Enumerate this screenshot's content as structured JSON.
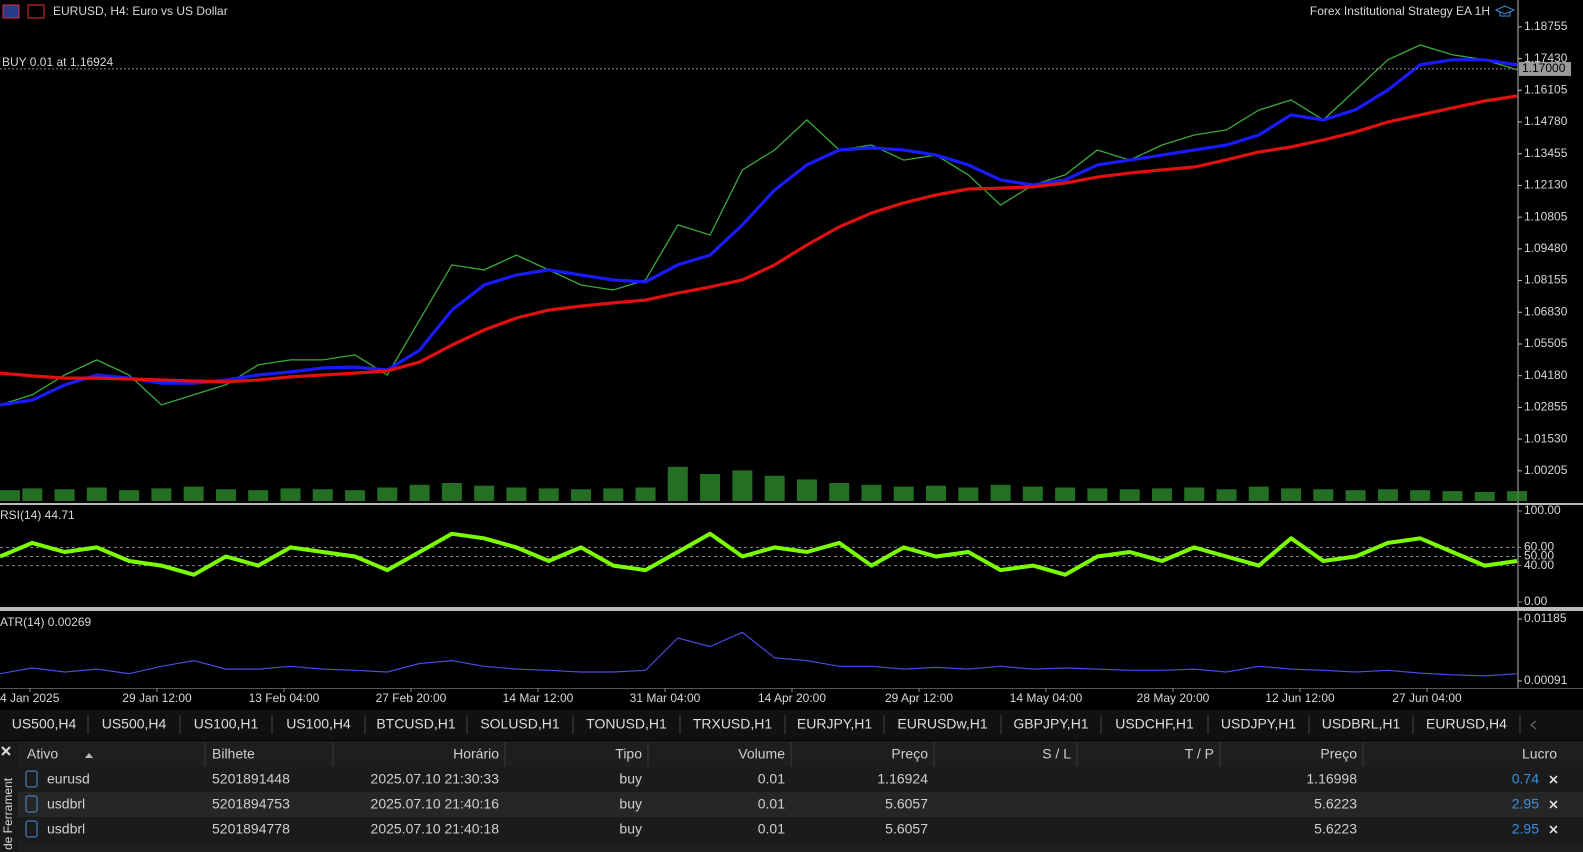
{
  "header": {
    "symbol": "EURUSD, H4:  Euro vs US Dollar",
    "expert": "Forex Institutional Strategy EA 1H",
    "order_line": "BUY 0.01 at 1.16924",
    "price_tag": {
      "value": 1.17,
      "label": "1.17000"
    }
  },
  "price_chart": {
    "type": "line",
    "ylim": [
      0.9886,
      1.1988
    ],
    "yticks": [
      1.18755,
      {
        "value": 1.1743,
        "label": "1.17430"
      },
      1.16105,
      {
        "value": 1.1478,
        "label": "1.14780"
      },
      1.13455,
      {
        "value": 1.1213,
        "label": "1.12130"
      },
      1.10805,
      {
        "value": 1.0948,
        "label": "1.09480"
      },
      1.08155,
      {
        "value": 1.0683,
        "label": "1.06830"
      },
      1.05505,
      {
        "value": 1.0418,
        "label": "1.04180"
      },
      1.02855,
      {
        "value": 1.0153,
        "label": "1.01530"
      },
      1.00205
    ],
    "x_labels": [
      "4 Jan 2025",
      "29 Jan 12:00",
      "13 Feb 04:00",
      "27 Feb 20:00",
      "14 Mar 12:00",
      "31 Mar 04:00",
      "14 Apr 20:00",
      "29 Apr 12:00",
      "14 May 04:00",
      "28 May 20:00",
      "12 Jun 12:00",
      "27 Jun 04:00"
    ],
    "series": [
      {
        "color": "#3aa93a",
        "values": [
          1.0296,
          1.0338,
          1.0421,
          1.0484,
          1.0421,
          1.0296,
          1.0338,
          1.038,
          1.0463,
          1.0484,
          1.0484,
          1.0505,
          1.0421,
          1.0651,
          1.0881,
          1.086,
          1.0922,
          1.086,
          1.0797,
          1.0776,
          1.0818,
          1.1048,
          1.1006,
          1.1278,
          1.1361,
          1.1487,
          1.1361,
          1.1382,
          1.1319,
          1.134,
          1.1257,
          1.1131,
          1.1215,
          1.1257,
          1.1361,
          1.1319,
          1.1382,
          1.1424,
          1.1445,
          1.1528,
          1.157,
          1.1487,
          1.1612,
          1.1738,
          1.18,
          1.1759,
          1.1738,
          1.1696
        ]
      },
      {
        "color": "#1a1aff",
        "values": [
          1.0296,
          1.0316,
          1.0379,
          1.0421,
          1.0408,
          1.0387,
          1.0387,
          1.04,
          1.0421,
          1.0434,
          1.045,
          1.0454,
          1.0442,
          1.0525,
          1.0692,
          1.0797,
          1.0839,
          1.086,
          1.0839,
          1.0818,
          1.081,
          1.0881,
          1.0922,
          1.1048,
          1.1194,
          1.1299,
          1.1361,
          1.137,
          1.1361,
          1.134,
          1.1299,
          1.1236,
          1.1215,
          1.1236,
          1.1299,
          1.1319,
          1.134,
          1.1361,
          1.1382,
          1.1424,
          1.1508,
          1.1487,
          1.1529,
          1.1612,
          1.1717,
          1.1738,
          1.1738,
          1.1717
        ]
      },
      {
        "color": "#e01010",
        "values": [
          1.0429,
          1.0417,
          1.0408,
          1.0408,
          1.0404,
          1.04,
          1.0396,
          1.0392,
          1.04,
          1.0413,
          1.0421,
          1.0429,
          1.0438,
          1.0475,
          1.0546,
          1.0609,
          1.0659,
          1.0692,
          1.0709,
          1.0722,
          1.0734,
          1.0763,
          1.0789,
          1.0818,
          1.0881,
          1.0964,
          1.104,
          1.1098,
          1.114,
          1.1173,
          1.1198,
          1.1202,
          1.1207,
          1.1223,
          1.1248,
          1.1265,
          1.1278,
          1.129,
          1.132,
          1.1353,
          1.1374,
          1.1403,
          1.1437,
          1.1478,
          1.1508,
          1.1537,
          1.1566,
          1.1587
        ]
      }
    ],
    "volume": {
      "color": "#2e8b2e",
      "ylim": [
        0,
        50
      ],
      "values": [
        12,
        14,
        13,
        15,
        12,
        14,
        16,
        13,
        12,
        14,
        13,
        12,
        15,
        18,
        20,
        17,
        15,
        14,
        13,
        14,
        15,
        38,
        30,
        34,
        28,
        24,
        20,
        18,
        16,
        17,
        15,
        18,
        16,
        15,
        14,
        13,
        14,
        15,
        13,
        16,
        14,
        13,
        12,
        13,
        12,
        11,
        10,
        11
      ]
    }
  },
  "rsi_chart": {
    "type": "line",
    "label": "RSI(14) 44.71",
    "color": "#7cfc00",
    "ylim": [
      -5.5,
      106.6
    ],
    "yticks": [
      {
        "value": 100,
        "label": "100.00"
      },
      {
        "value": 60,
        "label": "60.00"
      },
      {
        "value": 50,
        "label": "50.00"
      },
      {
        "value": 40,
        "label": "40.00"
      },
      {
        "value": 0,
        "label": "0.00"
      }
    ],
    "values": [
      50,
      65,
      55,
      60,
      45,
      40,
      30,
      50,
      40,
      60,
      55,
      50,
      35,
      55,
      75,
      70,
      60,
      45,
      60,
      40,
      35,
      55,
      75,
      50,
      60,
      55,
      65,
      40,
      60,
      50,
      55,
      35,
      40,
      30,
      50,
      55,
      45,
      60,
      50,
      40,
      70,
      45,
      50,
      65,
      70,
      55,
      40,
      45
    ]
  },
  "atr_chart": {
    "type": "line",
    "label": "ATR(14) 0.00269",
    "color": "#4a4ae0",
    "ylim": [
      -0.00033,
      0.01309
    ],
    "yticks": [
      0.01185,
      0.00091
    ],
    "values": [
      0.0022,
      0.0032,
      0.0025,
      0.003,
      0.0022,
      0.0035,
      0.0045,
      0.003,
      0.003,
      0.0035,
      0.003,
      0.0028,
      0.0025,
      0.004,
      0.0045,
      0.0035,
      0.003,
      0.0028,
      0.0025,
      0.0025,
      0.0028,
      0.0085,
      0.007,
      0.0095,
      0.005,
      0.0045,
      0.0035,
      0.0035,
      0.003,
      0.0033,
      0.003,
      0.0035,
      0.003,
      0.0032,
      0.003,
      0.0028,
      0.0028,
      0.003,
      0.0025,
      0.0035,
      0.003,
      0.0028,
      0.0025,
      0.0028,
      0.0023,
      0.002,
      0.0018,
      0.0022
    ]
  },
  "tabs": [
    "US500,H4",
    "US500,H4",
    "US100,H1",
    "US100,H4",
    "BTCUSD,H1",
    "SOLUSD,H1",
    "TONUSD,H1",
    "TRXUSD,H1",
    "EURJPY,H1",
    "EURUSDw,H1",
    "GBPJPY,H1",
    "USDCHF,H1",
    "USDJPY,H1",
    "USDBRL,H1",
    "EURUSD,H4"
  ],
  "toolbox": {
    "title": "de Ferrament"
  },
  "table": {
    "headers": [
      "Ativo",
      "Bilhete",
      "Horário",
      "Tipo",
      "Volume",
      "Preço",
      "S / L",
      "T / P",
      "Preço",
      "Lucro"
    ],
    "rows": [
      [
        "eurusd",
        "5201891448",
        "2025.07.10 21:30:33",
        "buy",
        "0.01",
        "1.16924",
        "",
        "",
        "1.16998",
        "0.74"
      ],
      [
        "usdbrl",
        "5201894753",
        "2025.07.10 21:40:16",
        "buy",
        "0.01",
        "5.6057",
        "",
        "",
        "5.6223",
        "2.95"
      ],
      [
        "usdbrl",
        "5201894778",
        "2025.07.10 21:40:18",
        "buy",
        "0.01",
        "5.6057",
        "",
        "",
        "5.6223",
        "2.95"
      ]
    ]
  }
}
